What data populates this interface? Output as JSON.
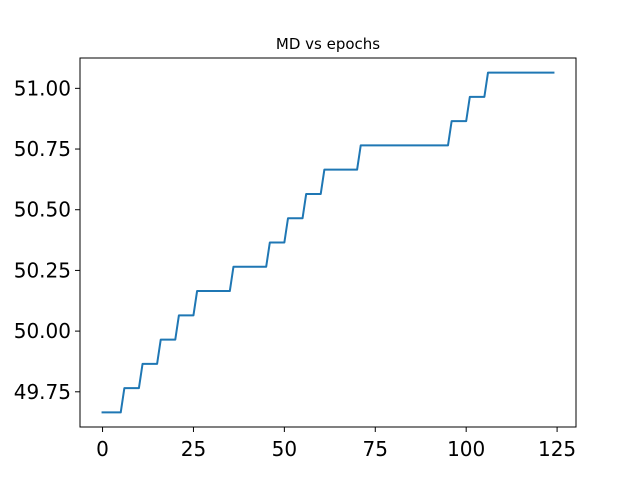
{
  "chart_data": {
    "type": "line",
    "title": "MD vs epochs",
    "xlabel": "",
    "ylabel": "",
    "xlim": [
      -6.2,
      130.2
    ],
    "ylim": [
      49.605,
      51.125
    ],
    "x_ticks": [
      0,
      25,
      50,
      75,
      100,
      125
    ],
    "x_tick_labels": [
      "0",
      "25",
      "50",
      "75",
      "100",
      "125"
    ],
    "y_ticks": [
      49.75,
      50.0,
      50.25,
      50.5,
      50.75,
      51.0
    ],
    "y_tick_labels": [
      "49.75",
      "50.00",
      "50.25",
      "50.50",
      "50.75",
      "51.00"
    ],
    "grid": false,
    "series": [
      {
        "color": "#1f77b4",
        "x": [
          0,
          5,
          6,
          10,
          11,
          15,
          16,
          20,
          21,
          25,
          26,
          35,
          36,
          45,
          46,
          50,
          51,
          55,
          56,
          60,
          61,
          70,
          71,
          95,
          96,
          100,
          101,
          105,
          106,
          124
        ],
        "y": [
          49.665,
          49.665,
          49.765,
          49.765,
          49.865,
          49.865,
          49.965,
          49.965,
          50.065,
          50.065,
          50.165,
          50.165,
          50.265,
          50.265,
          50.365,
          50.365,
          50.465,
          50.465,
          50.565,
          50.565,
          50.665,
          50.665,
          50.765,
          50.765,
          50.865,
          50.865,
          50.965,
          50.965,
          51.065,
          51.065
        ]
      }
    ]
  }
}
